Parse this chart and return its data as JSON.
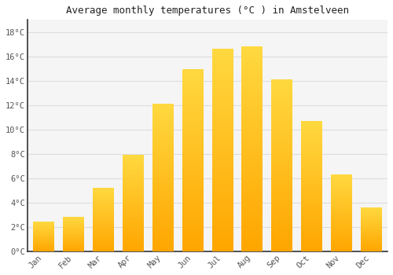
{
  "months": [
    "Jan",
    "Feb",
    "Mar",
    "Apr",
    "May",
    "Jun",
    "Jul",
    "Aug",
    "Sep",
    "Oct",
    "Nov",
    "Dec"
  ],
  "temperatures": [
    2.4,
    2.8,
    5.2,
    7.9,
    12.1,
    14.9,
    16.6,
    16.8,
    14.1,
    10.7,
    6.3,
    3.6
  ],
  "bar_color": "#FFA500",
  "bar_color_light": "#FFD050",
  "title": "Average monthly temperatures (°C ) in Amstelveen",
  "ylim": [
    0,
    19
  ],
  "yticks": [
    0,
    2,
    4,
    6,
    8,
    10,
    12,
    14,
    16,
    18
  ],
  "ytick_labels": [
    "0°C",
    "2°C",
    "4°C",
    "6°C",
    "8°C",
    "10°C",
    "12°C",
    "14°C",
    "16°C",
    "18°C"
  ],
  "plot_bg_color": "#F5F5F5",
  "fig_bg_color": "#FFFFFF",
  "grid_color": "#DDDDDD",
  "title_fontsize": 9,
  "tick_fontsize": 7.5,
  "bar_width": 0.7,
  "spine_color": "#333333",
  "tick_color": "#555555"
}
